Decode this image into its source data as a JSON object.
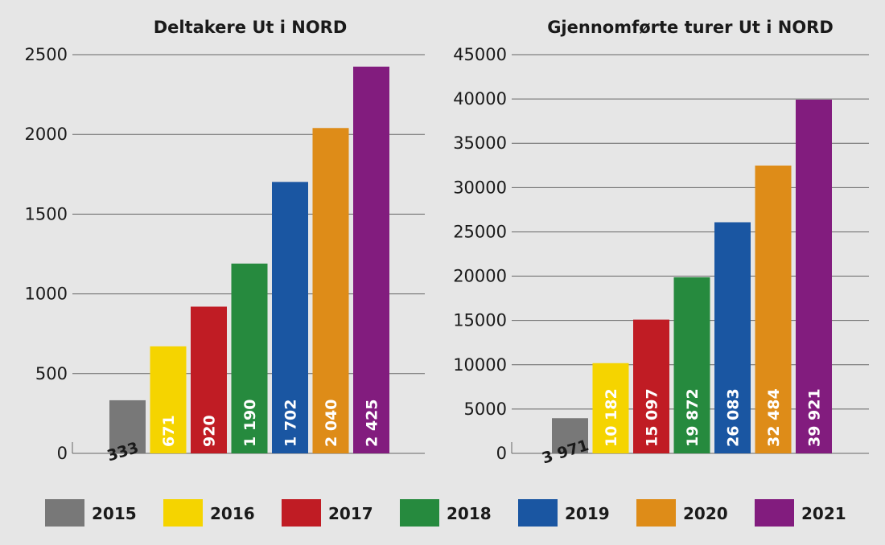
{
  "chart_data": [
    {
      "type": "bar",
      "title": "Deltakere Ut i NORD",
      "categories": [
        "2015",
        "2016",
        "2017",
        "2018",
        "2019",
        "2020",
        "2021"
      ],
      "values": [
        333,
        671,
        920,
        1190,
        1702,
        2040,
        2425
      ],
      "value_labels": [
        "333",
        "671",
        "920",
        "1 190",
        "1 702",
        "2 040",
        "2 425"
      ],
      "ylim": [
        0,
        2500
      ],
      "yticks": [
        "0",
        "500",
        "1000",
        "1500",
        "2000",
        "2500"
      ],
      "ytick_values": [
        0,
        500,
        1000,
        1500,
        2000,
        2500
      ],
      "grid": true
    },
    {
      "type": "bar",
      "title": "Gjennomførte turer Ut i NORD",
      "categories": [
        "2015",
        "2016",
        "2017",
        "2018",
        "2019",
        "2020",
        "2021"
      ],
      "values": [
        3971,
        10182,
        15097,
        19872,
        26083,
        32484,
        39921
      ],
      "value_labels": [
        "3 971",
        "10 182",
        "15 097",
        "19 872",
        "26 083",
        "32 484",
        "39 921"
      ],
      "ylim": [
        0,
        45000
      ],
      "yticks": [
        "0",
        "5000",
        "10000",
        "15000",
        "20000",
        "25000",
        "30000",
        "35000",
        "40000",
        "45000"
      ],
      "ytick_values": [
        0,
        5000,
        10000,
        15000,
        20000,
        25000,
        30000,
        35000,
        40000,
        45000
      ],
      "grid": true
    }
  ],
  "legend": {
    "placement": "bottom",
    "entries": [
      {
        "label": "2015",
        "color": "#787878"
      },
      {
        "label": "2016",
        "color": "#f5d400"
      },
      {
        "label": "2017",
        "color": "#c01c24"
      },
      {
        "label": "2018",
        "color": "#268a3e"
      },
      {
        "label": "2019",
        "color": "#1a56a2"
      },
      {
        "label": "2020",
        "color": "#de8c18"
      },
      {
        "label": "2021",
        "color": "#821c7e"
      }
    ]
  }
}
